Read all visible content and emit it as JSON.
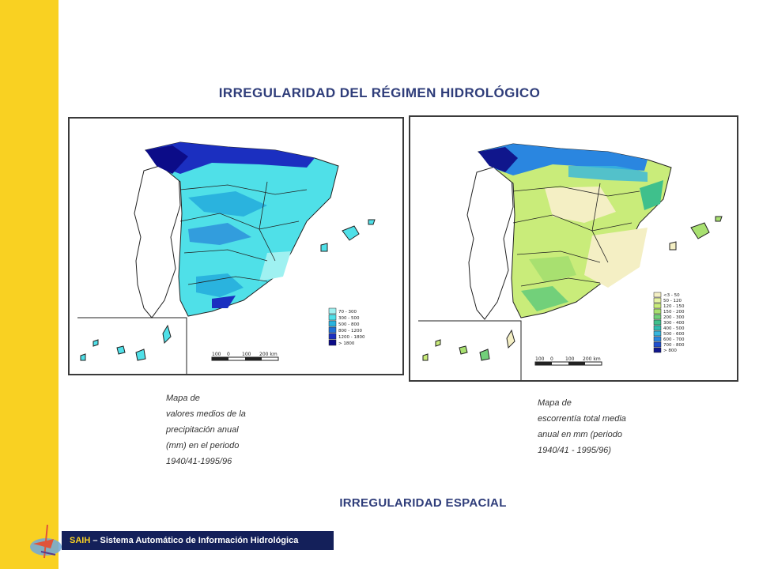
{
  "slide": {
    "title": "IRREGULARIDAD DEL RÉGIMEN HIDROLÓGICO",
    "subtitle": "IRREGULARIDAD ESPACIAL"
  },
  "map_left": {
    "caption_lines": [
      "Mapa de",
      "valores medios de la",
      "precipitación anual",
      "(mm) en el periodo",
      "1940/41-1995/96"
    ],
    "legend": [
      {
        "label": "70 - 300",
        "color": "#9ff1f1"
      },
      {
        "label": "300 - 500",
        "color": "#4fe0e8"
      },
      {
        "label": "500 - 800",
        "color": "#2ab3de"
      },
      {
        "label": "800 - 1200",
        "color": "#1f6fd6"
      },
      {
        "label": "1200 - 1800",
        "color": "#1b2fc0"
      },
      {
        "label": "> 1800",
        "color": "#0c0c88"
      }
    ],
    "scale_labels": [
      "100",
      "0",
      "100",
      "200 km"
    ]
  },
  "map_right": {
    "caption_lines": [
      "Mapa de",
      "escorrentía total media",
      "anual en mm (periodo",
      "1940/41 - 1995/96)"
    ],
    "legend": [
      {
        "label": "<3 - 50",
        "color": "#f4efc4"
      },
      {
        "label": "50 - 120",
        "color": "#e4f3a2"
      },
      {
        "label": "120 - 150",
        "color": "#c9ec7a"
      },
      {
        "label": "150 - 200",
        "color": "#a8e070"
      },
      {
        "label": "200 - 300",
        "color": "#72d07a"
      },
      {
        "label": "300 - 400",
        "color": "#3fc08c"
      },
      {
        "label": "400 - 500",
        "color": "#2fbcb0"
      },
      {
        "label": "500 - 600",
        "color": "#36b6de"
      },
      {
        "label": "600 - 700",
        "color": "#2a86e0"
      },
      {
        "label": "700 - 800",
        "color": "#1f4fd0"
      },
      {
        "label": "> 800",
        "color": "#10168c"
      }
    ],
    "scale_labels": [
      "100",
      "0",
      "100",
      "200 km"
    ]
  },
  "footer": {
    "brand": "SAIH",
    "text": " – Sistema Automático de Información Hidrológica"
  }
}
